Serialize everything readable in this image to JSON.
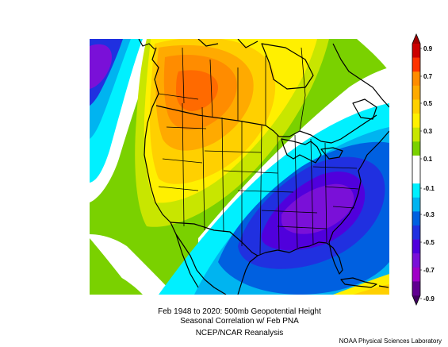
{
  "figure": {
    "title_line1": "Feb 1948 to 2020: 500mb Geopotential Height",
    "title_line2": "Seasonal Correlation w/ Feb PNA",
    "source": "NCEP/NCAR Reanalysis",
    "credit": "NOAA Physical Sciences Laboratory"
  },
  "colorbar": {
    "labels": [
      "0.9",
      "0.7",
      "0.5",
      "0.3",
      "0.1",
      "-0.1",
      "-0.3",
      "-0.5",
      "-0.7",
      "-0.9"
    ],
    "colors": [
      "#cc0000",
      "#ff3300",
      "#ff8c00",
      "#ffaa00",
      "#ffd000",
      "#fff000",
      "#c8e600",
      "#7ad100",
      "#ffffff",
      "#ffffff",
      "#00f0ff",
      "#00b4f0",
      "#0060e0",
      "#2030e0",
      "#5000dc",
      "#7a10d8",
      "#a000c8",
      "#600090"
    ]
  },
  "map": {
    "features": [
      "North America coastlines",
      "US state borders",
      "Canadian provinces",
      "Mexico",
      "Caribbean"
    ],
    "anomaly_centers": [
      {
        "sign": "positive",
        "region": "Western Canada / Pacific Northwest",
        "peak": 0.7
      },
      {
        "sign": "negative",
        "region": "Southeastern United States",
        "peak": -0.6
      },
      {
        "sign": "negative",
        "region": "North Pacific (west edge)",
        "peak": -0.6
      }
    ]
  }
}
